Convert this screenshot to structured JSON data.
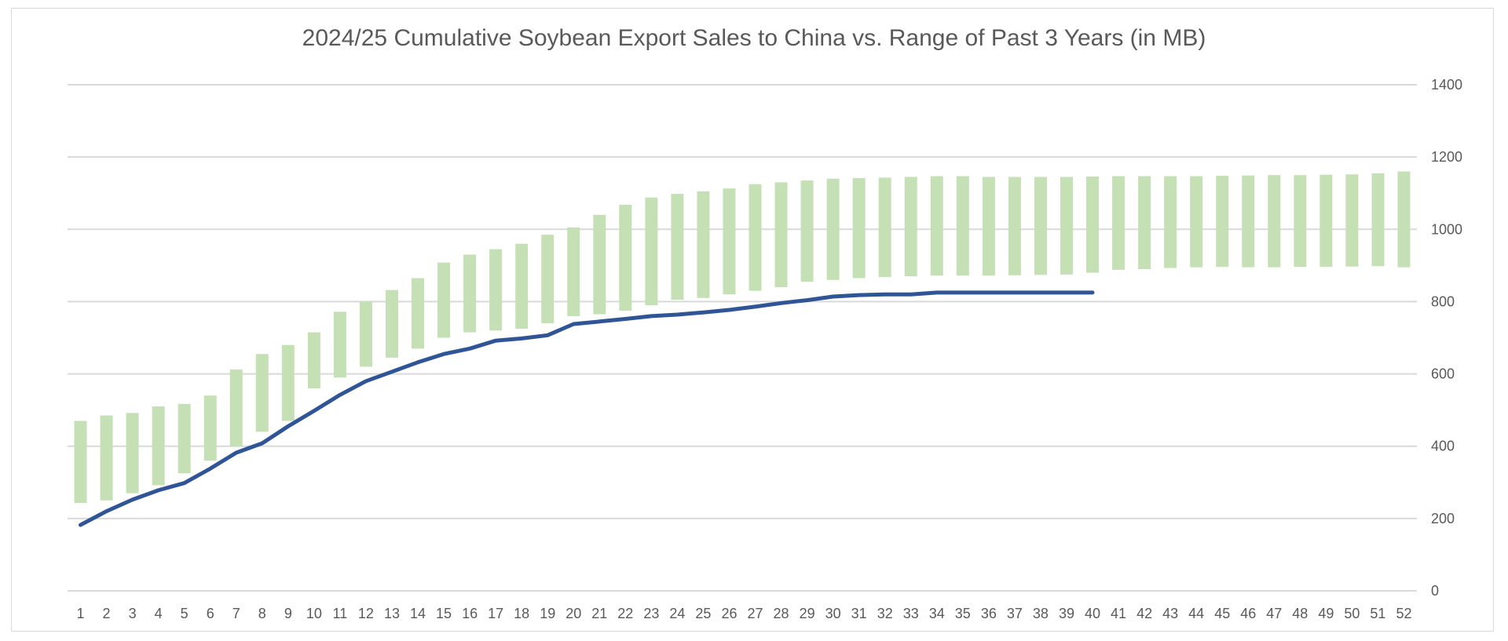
{
  "chart_data": {
    "type": "bar",
    "title": "2024/25 Cumulative Soybean Export Sales to China vs. Range of Past 3 Years (in MB)",
    "xlabel": "",
    "ylabel": "",
    "ylim": [
      0,
      1400
    ],
    "yticks": [
      "0",
      "200",
      "400",
      "600",
      "800",
      "1000",
      "1200",
      "1400"
    ],
    "y_axis_side": "right",
    "grid": true,
    "legend": "none",
    "categories": [
      "1",
      "2",
      "3",
      "4",
      "5",
      "6",
      "7",
      "8",
      "9",
      "10",
      "11",
      "12",
      "13",
      "14",
      "15",
      "16",
      "17",
      "18",
      "19",
      "20",
      "21",
      "22",
      "23",
      "24",
      "25",
      "26",
      "27",
      "28",
      "29",
      "30",
      "31",
      "32",
      "33",
      "34",
      "35",
      "36",
      "37",
      "38",
      "39",
      "40",
      "41",
      "42",
      "43",
      "44",
      "45",
      "46",
      "47",
      "48",
      "49",
      "50",
      "51",
      "52"
    ],
    "range_low": [
      243,
      250,
      270,
      292,
      325,
      360,
      400,
      440,
      470,
      560,
      590,
      620,
      645,
      670,
      700,
      715,
      720,
      725,
      740,
      760,
      765,
      775,
      790,
      805,
      810,
      820,
      830,
      840,
      855,
      860,
      865,
      868,
      870,
      872,
      872,
      872,
      873,
      874,
      875,
      880,
      888,
      890,
      893,
      895,
      896,
      895,
      895,
      896,
      896,
      897,
      898,
      895
    ],
    "range_high": [
      470,
      485,
      492,
      510,
      517,
      540,
      612,
      655,
      680,
      715,
      772,
      800,
      832,
      865,
      908,
      930,
      945,
      960,
      985,
      1005,
      1040,
      1068,
      1088,
      1098,
      1105,
      1113,
      1125,
      1130,
      1135,
      1140,
      1142,
      1143,
      1145,
      1147,
      1147,
      1145,
      1145,
      1145,
      1145,
      1146,
      1147,
      1147,
      1147,
      1147,
      1148,
      1149,
      1150,
      1150,
      1151,
      1152,
      1155,
      1160
    ],
    "current": [
      182,
      220,
      252,
      278,
      298,
      338,
      382,
      408,
      455,
      498,
      542,
      580,
      606,
      632,
      655,
      670,
      692,
      698,
      707,
      738,
      745,
      752,
      760,
      764,
      770,
      777,
      786,
      796,
      804,
      814,
      818,
      820,
      820,
      825,
      825,
      825,
      825,
      825,
      825,
      825
    ],
    "colors": {
      "range": "#c5e0b4",
      "current": "#2f5597",
      "grid": "#d9d9d9",
      "text": "#595959"
    }
  }
}
